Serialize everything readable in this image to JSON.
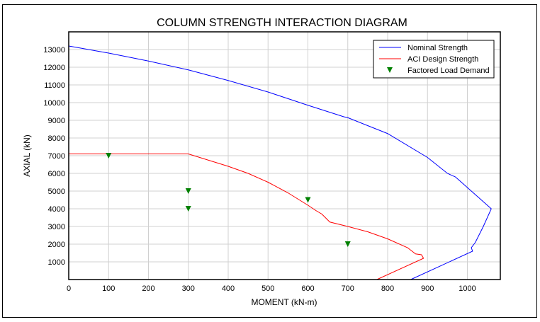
{
  "chart_data": {
    "type": "line",
    "title": "COLUMN STRENGTH INTERACTION DIAGRAM",
    "xlabel": "MOMENT (kN-m)",
    "ylabel": "AXIAL (kN)",
    "xlim": [
      0,
      1085
    ],
    "ylim": [
      0,
      14000
    ],
    "xticks": [
      0,
      100,
      200,
      300,
      400,
      500,
      600,
      700,
      800,
      900,
      1000
    ],
    "yticks": [
      1000,
      2000,
      3000,
      4000,
      5000,
      6000,
      7000,
      8000,
      9000,
      10000,
      11000,
      12000,
      13000
    ],
    "grid": true,
    "legend_position": "top-right",
    "series": [
      {
        "name": "Nominal Strength",
        "kind": "line",
        "color": "#0000ff",
        "points": [
          [
            0,
            13200
          ],
          [
            100,
            12800
          ],
          [
            200,
            12350
          ],
          [
            300,
            11850
          ],
          [
            400,
            11250
          ],
          [
            500,
            10600
          ],
          [
            600,
            9850
          ],
          [
            690,
            9200
          ],
          [
            700,
            9150
          ],
          [
            800,
            8250
          ],
          [
            900,
            6900
          ],
          [
            950,
            6000
          ],
          [
            970,
            5800
          ],
          [
            1060,
            4000
          ],
          [
            1040,
            3000
          ],
          [
            1020,
            2100
          ],
          [
            1010,
            1800
          ],
          [
            1013,
            1600
          ],
          [
            858,
            0
          ]
        ]
      },
      {
        "name": "ACI Design Strength",
        "kind": "line",
        "color": "#ff0000",
        "points": [
          [
            0,
            7100
          ],
          [
            300,
            7100
          ],
          [
            400,
            6400
          ],
          [
            450,
            6000
          ],
          [
            500,
            5500
          ],
          [
            550,
            4900
          ],
          [
            600,
            4200
          ],
          [
            620,
            3900
          ],
          [
            635,
            3700
          ],
          [
            655,
            3250
          ],
          [
            700,
            3000
          ],
          [
            750,
            2700
          ],
          [
            800,
            2300
          ],
          [
            850,
            1800
          ],
          [
            870,
            1450
          ],
          [
            885,
            1400
          ],
          [
            890,
            1200
          ],
          [
            773,
            0
          ]
        ]
      },
      {
        "name": "Factored Load Demand",
        "kind": "scatter",
        "marker": "triangle-down",
        "color": "#008000",
        "points": [
          [
            100,
            7000
          ],
          [
            300,
            5000
          ],
          [
            300,
            4000
          ],
          [
            600,
            4500
          ],
          [
            700,
            2000
          ]
        ]
      }
    ]
  }
}
